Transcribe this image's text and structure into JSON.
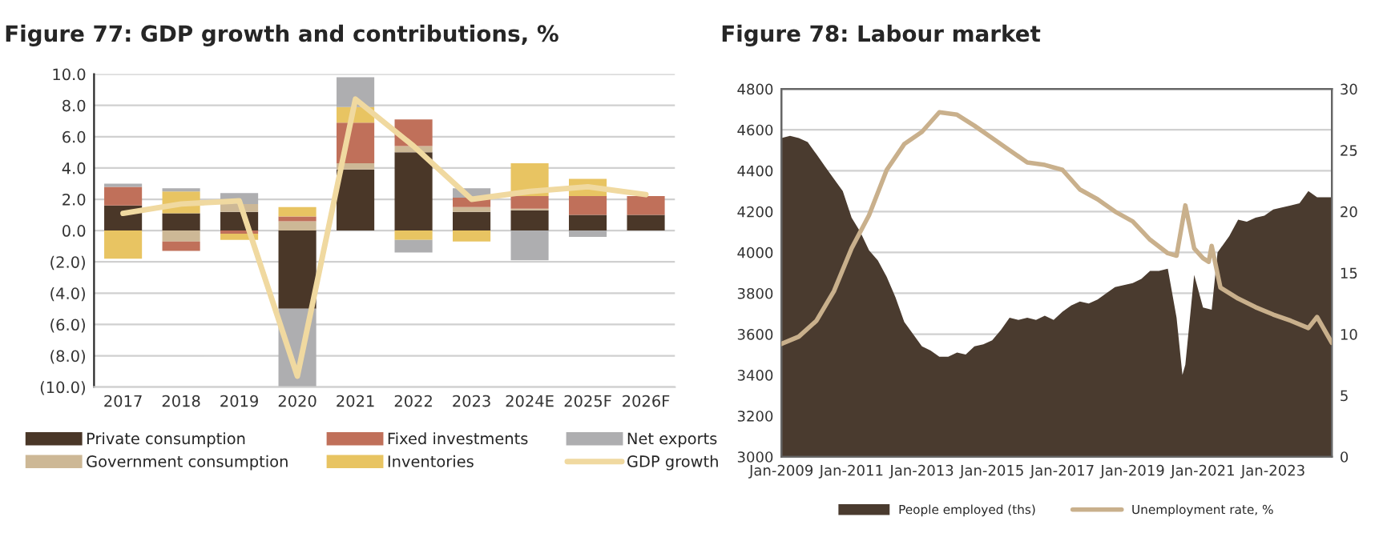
{
  "chart_data": [
    {
      "type": "bar",
      "title": "Figure 77: GDP growth and contributions, %",
      "stacked": true,
      "categories": [
        "2017",
        "2018",
        "2019",
        "2020",
        "2021",
        "2022",
        "2023",
        "2024E",
        "2025F",
        "2026F"
      ],
      "series": [
        {
          "name": "Private consumption",
          "color": "#4a3728",
          "values": [
            1.6,
            1.1,
            1.2,
            -5.0,
            3.9,
            5.0,
            1.2,
            1.3,
            1.0,
            1.0
          ]
        },
        {
          "name": "Government consumption",
          "color": "#cdb896",
          "values": [
            0.0,
            -0.7,
            0.5,
            0.6,
            0.4,
            0.4,
            0.3,
            0.1,
            0.0,
            0.0
          ]
        },
        {
          "name": "Fixed investments",
          "color": "#c0705a",
          "values": [
            1.2,
            -0.6,
            -0.2,
            0.3,
            2.6,
            1.7,
            0.6,
            0.8,
            1.2,
            1.2
          ]
        },
        {
          "name": "Inventories",
          "color": "#e8c462",
          "values": [
            -1.8,
            1.4,
            -0.4,
            0.6,
            1.0,
            -0.6,
            -0.7,
            2.1,
            1.1,
            0.0
          ]
        },
        {
          "name": "Net exports",
          "color": "#aeaeb0",
          "values": [
            0.2,
            0.2,
            0.7,
            -5.0,
            1.9,
            -0.8,
            0.6,
            -1.9,
            -0.4,
            0.0
          ]
        },
        {
          "name": "GDP growth",
          "type": "line",
          "color": "#f0d9a0",
          "values": [
            1.1,
            1.7,
            1.9,
            -9.3,
            8.4,
            5.4,
            2.0,
            2.5,
            2.8,
            2.3
          ]
        }
      ],
      "ylim": [
        -10,
        10
      ],
      "yticks": [
        {
          "value": -10,
          "label": "(10.0)"
        },
        {
          "value": -8,
          "label": "(8.0)"
        },
        {
          "value": -6,
          "label": "(6.0)"
        },
        {
          "value": -4,
          "label": "(4.0)"
        },
        {
          "value": -2,
          "label": "(2.0)"
        },
        {
          "value": 0,
          "label": "0.0"
        },
        {
          "value": 2,
          "label": "2.0"
        },
        {
          "value": 4,
          "label": "4.0"
        },
        {
          "value": 6,
          "label": "6.0"
        },
        {
          "value": 8,
          "label": "8.0"
        },
        {
          "value": 10,
          "label": "10.0"
        }
      ],
      "grid": "y",
      "legend": "bottom"
    },
    {
      "type": "area",
      "title": "Figure 78: Labour market",
      "x": [
        "2009-01",
        "2009-04",
        "2009-07",
        "2009-10",
        "2010-01",
        "2010-04",
        "2010-07",
        "2010-10",
        "2011-01",
        "2011-04",
        "2011-07",
        "2011-10",
        "2012-01",
        "2012-04",
        "2012-07",
        "2012-10",
        "2013-01",
        "2013-04",
        "2013-07",
        "2013-10",
        "2014-01",
        "2014-04",
        "2014-07",
        "2014-10",
        "2015-01",
        "2015-04",
        "2015-07",
        "2015-10",
        "2016-01",
        "2016-04",
        "2016-07",
        "2016-10",
        "2017-01",
        "2017-04",
        "2017-07",
        "2017-10",
        "2018-01",
        "2018-04",
        "2018-07",
        "2018-10",
        "2019-01",
        "2019-04",
        "2019-07",
        "2019-10",
        "2020-01",
        "2020-04",
        "2020-06",
        "2020-07",
        "2020-10",
        "2021-01",
        "2021-04",
        "2021-06",
        "2021-10",
        "2022-01",
        "2022-04",
        "2022-07",
        "2022-10",
        "2023-01",
        "2023-04",
        "2023-07",
        "2023-10",
        "2024-01",
        "2024-04",
        "2024-07",
        "2024-09"
      ],
      "series": [
        {
          "name": "People employed (ths)",
          "type": "area",
          "color": "#4a3b2f",
          "values": [
            4560,
            4570,
            4560,
            4540,
            4480,
            4420,
            4360,
            4300,
            4170,
            4100,
            4010,
            3960,
            3880,
            3780,
            3660,
            3600,
            3540,
            3520,
            3490,
            3490,
            3510,
            3500,
            3540,
            3550,
            3570,
            3620,
            3680,
            3670,
            3680,
            3670,
            3690,
            3670,
            3710,
            3740,
            3760,
            3750,
            3770,
            3800,
            3830,
            3840,
            3850,
            3870,
            3910,
            3910,
            3920,
            3680,
            3400,
            3450,
            3890,
            3730,
            3720,
            4000,
            4080,
            4160,
            4150,
            4170,
            4180,
            4210,
            4220,
            4230,
            4240,
            4300,
            4270,
            4270,
            4270
          ]
        },
        {
          "name": "Unemployment rate, %",
          "type": "line",
          "axis": "y2",
          "color": "#c9b08c",
          "x": [
            "2009-01",
            "2009-07",
            "2010-01",
            "2010-07",
            "2011-01",
            "2011-07",
            "2012-01",
            "2012-07",
            "2013-01",
            "2013-07",
            "2014-01",
            "2014-07",
            "2015-01",
            "2015-07",
            "2016-01",
            "2016-07",
            "2017-01",
            "2017-07",
            "2018-01",
            "2018-07",
            "2019-01",
            "2019-07",
            "2020-01",
            "2020-04",
            "2020-07",
            "2020-10",
            "2021-01",
            "2021-03",
            "2021-04",
            "2021-07",
            "2022-01",
            "2022-07",
            "2023-01",
            "2023-07",
            "2024-01",
            "2024-04",
            "2024-09"
          ],
          "values": [
            9.2,
            9.8,
            11.1,
            13.5,
            17.0,
            19.7,
            23.4,
            25.5,
            26.5,
            28.1,
            27.9,
            27.0,
            26.0,
            25.0,
            24.0,
            23.8,
            23.4,
            21.8,
            21.0,
            20.0,
            19.2,
            17.7,
            16.6,
            16.4,
            20.5,
            17.0,
            16.2,
            15.9,
            17.2,
            13.8,
            12.9,
            12.2,
            11.6,
            11.1,
            10.5,
            11.4,
            9.3
          ]
        }
      ],
      "xlim": [
        "2009-01",
        "2024-09"
      ],
      "xticks": [
        {
          "value": "2009-01",
          "label": "Jan-2009"
        },
        {
          "value": "2011-01",
          "label": "Jan-2011"
        },
        {
          "value": "2013-01",
          "label": "Jan-2013"
        },
        {
          "value": "2015-01",
          "label": "Jan-2015"
        },
        {
          "value": "2017-01",
          "label": "Jan-2017"
        },
        {
          "value": "2019-01",
          "label": "Jan-2019"
        },
        {
          "value": "2021-01",
          "label": "Jan-2021"
        },
        {
          "value": "2023-01",
          "label": "Jan-2023"
        }
      ],
      "ylim": [
        3000,
        4800
      ],
      "yticks": [
        3000,
        3200,
        3400,
        3600,
        3800,
        4000,
        4200,
        4400,
        4600,
        4800
      ],
      "y2lim": [
        0,
        30
      ],
      "y2ticks": [
        0,
        5,
        10,
        15,
        20,
        25,
        30
      ],
      "grid": "y",
      "legend": "bottom"
    }
  ]
}
